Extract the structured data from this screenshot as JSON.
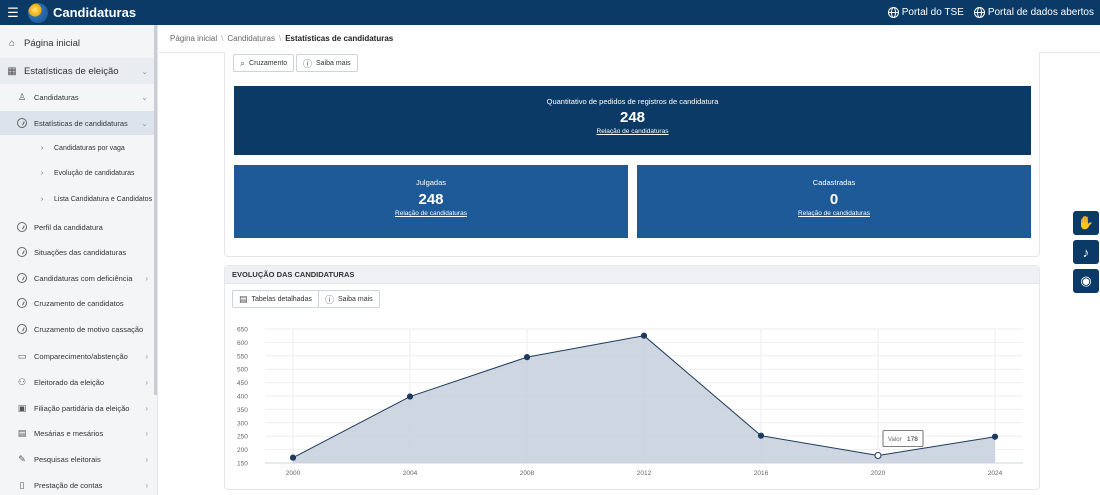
{
  "app": {
    "title": "Candidaturas",
    "portal_tse": "Portal do TSE",
    "portal_dados": "Portal de dados abertos"
  },
  "sidebar": {
    "items": [
      {
        "label": "Página inicial",
        "icon": "home-icon",
        "level": 0,
        "chevron": false
      },
      {
        "label": "Estatísticas de eleição",
        "icon": "chart-icon",
        "level": 0,
        "chevron": true
      },
      {
        "label": "Candidaturas",
        "icon": "users-icon",
        "level": 1,
        "chevron": true
      },
      {
        "label": "Estatísticas de candidaturas",
        "icon": "circle-icon",
        "level": 1,
        "chevron": true
      },
      {
        "label": "Candidaturas por vaga",
        "icon": "chevron-right-icon",
        "level": 2,
        "chevron": false
      },
      {
        "label": "Evolução de candidaturas",
        "icon": "chevron-right-icon",
        "level": 2,
        "chevron": false
      },
      {
        "label": "Lista Candidatura e Candidatos",
        "icon": "chevron-right-icon",
        "level": 2,
        "chevron": false
      },
      {
        "label": "Perfil da candidatura",
        "icon": "circle-icon",
        "level": 1,
        "chevron": false
      },
      {
        "label": "Situações das candidaturas",
        "icon": "circle-icon",
        "level": 1,
        "chevron": false
      },
      {
        "label": "Candidaturas com deficiência",
        "icon": "circle-icon",
        "level": 1,
        "chevron": true
      },
      {
        "label": "Cruzamento de candidatos",
        "icon": "circle-icon",
        "level": 1,
        "chevron": false
      },
      {
        "label": "Cruzamento de motivo cassação",
        "icon": "circle-icon",
        "level": 1,
        "chevron": false
      },
      {
        "label": "Comparecimento/abstenção",
        "icon": "ballot-icon",
        "level": 1,
        "chevron": true
      },
      {
        "label": "Eleitorado da eleição",
        "icon": "people-icon",
        "level": 1,
        "chevron": true
      },
      {
        "label": "Filiação partidária da eleição",
        "icon": "id-card-icon",
        "level": 1,
        "chevron": true
      },
      {
        "label": "Mesárias e mesários",
        "icon": "badge-icon",
        "level": 1,
        "chevron": true
      },
      {
        "label": "Pesquisas eleitorais",
        "icon": "edit-icon",
        "level": 1,
        "chevron": true
      },
      {
        "label": "Prestação de contas",
        "icon": "book-icon",
        "level": 1,
        "chevron": true
      }
    ]
  },
  "breadcrumb": {
    "home": "Página inicial",
    "section": "Candidaturas",
    "current": "Estatísticas de candidaturas"
  },
  "panel1": {
    "btn_cruzamento": "Cruzamento",
    "btn_saiba_mais": "Saiba mais",
    "total": {
      "title": "Quantitativo de pedidos de registros de candidatura",
      "value": "248",
      "link": "Relação de candidaturas"
    },
    "julgadas": {
      "title": "Julgadas",
      "value": "248",
      "link": "Relação de candidaturas"
    },
    "cadastradas": {
      "title": "Cadastradas",
      "value": "0",
      "link": "Relação de candidaturas"
    }
  },
  "panel2": {
    "header": "EVOLUÇÃO DAS CANDIDATURAS",
    "btn_tabelas": "Tabelas detalhadas",
    "btn_saiba_mais": "Saiba mais"
  },
  "chart_data": {
    "type": "area",
    "title": "",
    "xlabel": "",
    "ylabel": "",
    "x": [
      "2000",
      "2004",
      "2008",
      "2012",
      "2016",
      "2020",
      "2024"
    ],
    "values": [
      170,
      398,
      545,
      625,
      252,
      178,
      248
    ],
    "ylim": [
      150,
      650
    ],
    "yticks": [
      150,
      200,
      250,
      300,
      350,
      400,
      450,
      500,
      550,
      600,
      650
    ],
    "grid": true,
    "tooltip": {
      "label": "Valor",
      "value": "178",
      "index": 5
    },
    "colors": {
      "line": "#1f3a5f",
      "fill": "#c5cfdc",
      "point": "#1f3a5f"
    }
  },
  "colors": {
    "primary": "#0b3a66",
    "secondary": "#1d5a97"
  }
}
